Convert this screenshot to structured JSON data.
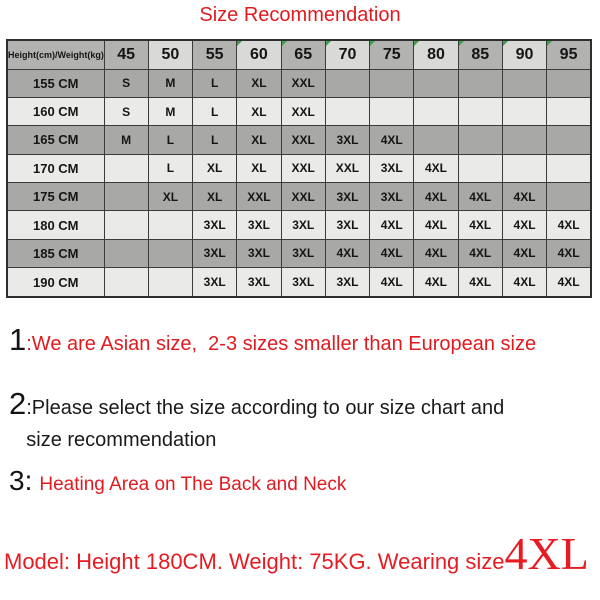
{
  "title": "Size Recommendation",
  "colors": {
    "accent_red": "#e01b20",
    "header_dark_gray": "#b2b2b0",
    "header_light_gray": "#d9d9d7",
    "row_dark_gray": "#a8a8a6",
    "row_light_gray": "#eaeae8",
    "border_gray": "#3c3c3c",
    "corner_tick_green": "#3da04b"
  },
  "chart_data": {
    "type": "table",
    "title": "Size Recommendation",
    "corner_header": "Height(cm)/Weight(kg)",
    "col_headers": [
      "45",
      "50",
      "55",
      "60",
      "65",
      "70",
      "75",
      "80",
      "85",
      "90",
      "95"
    ],
    "row_headers": [
      "155 CM",
      "160 CM",
      "165 CM",
      "170 CM",
      "175 CM",
      "180 CM",
      "185 CM",
      "190 CM"
    ],
    "cells": [
      [
        "S",
        "M",
        "L",
        "XL",
        "XXL",
        "",
        "",
        "",
        "",
        "",
        ""
      ],
      [
        "S",
        "M",
        "L",
        "XL",
        "XXL",
        "",
        "",
        "",
        "",
        "",
        ""
      ],
      [
        "M",
        "L",
        "L",
        "XL",
        "XXL",
        "3XL",
        "4XL",
        "",
        "",
        "",
        ""
      ],
      [
        "",
        "L",
        "XL",
        "XL",
        "XXL",
        "XXL",
        "3XL",
        "4XL",
        "",
        "",
        ""
      ],
      [
        "",
        "XL",
        "XL",
        "XXL",
        "XXL",
        "3XL",
        "3XL",
        "4XL",
        "4XL",
        "4XL",
        ""
      ],
      [
        "",
        "",
        "3XL",
        "3XL",
        "3XL",
        "3XL",
        "4XL",
        "4XL",
        "4XL",
        "4XL",
        "4XL"
      ],
      [
        "",
        "",
        "3XL",
        "3XL",
        "3XL",
        "4XL",
        "4XL",
        "4XL",
        "4XL",
        "4XL",
        "4XL"
      ],
      [
        "",
        "",
        "3XL",
        "3XL",
        "3XL",
        "3XL",
        "4XL",
        "4XL",
        "4XL",
        "4XL",
        "4XL"
      ]
    ]
  },
  "notes": [
    {
      "number": "1",
      "text": ":We are Asian size,  2-3 sizes smaller than European size"
    },
    {
      "number": "2",
      "text": ":Please select the size according to our size chart and",
      "text_line2": "size recommendation"
    },
    {
      "number": "3:",
      "text": "Heating Area on The Back and Neck"
    }
  ],
  "model_info": {
    "text": "Model: Height 180CM. Weight: 75KG. Wearing size",
    "size": "4XL"
  }
}
